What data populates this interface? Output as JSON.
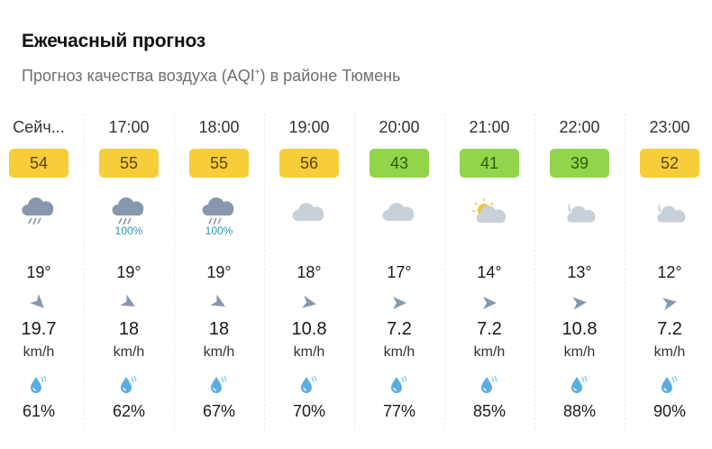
{
  "header": {
    "title": "Ежечасный прогноз",
    "subtitle_pre": "Прогноз качества воздуха (AQI",
    "subtitle_sup": "+",
    "subtitle_post": ") в районе Тюмень"
  },
  "units": {
    "wind": "km/h"
  },
  "colors": {
    "aqi_moderate": "#f8cd3a",
    "aqi_good": "#92d44a",
    "precip_text": "#2c95b5",
    "icon_gray": "#8797ad",
    "cloud_light": "#c8d0d8"
  },
  "hours": [
    {
      "time": "Сейч...",
      "aqi": "54",
      "aqi_level": "moderate",
      "icon": "rain-cloud-icon",
      "precip": "",
      "temp": "19°",
      "wind_dir_deg": 135,
      "wind_speed": "19.7",
      "humidity": "61%"
    },
    {
      "time": "17:00",
      "aqi": "55",
      "aqi_level": "moderate",
      "icon": "rain-cloud-icon",
      "precip": "100%",
      "temp": "19°",
      "wind_dir_deg": 120,
      "wind_speed": "18",
      "humidity": "62%"
    },
    {
      "time": "18:00",
      "aqi": "55",
      "aqi_level": "moderate",
      "icon": "rain-cloud-icon",
      "precip": "100%",
      "temp": "19°",
      "wind_dir_deg": 120,
      "wind_speed": "18",
      "humidity": "67%"
    },
    {
      "time": "19:00",
      "aqi": "56",
      "aqi_level": "moderate",
      "icon": "cloud-icon",
      "precip": "",
      "temp": "18°",
      "wind_dir_deg": 100,
      "wind_speed": "10.8",
      "humidity": "70%"
    },
    {
      "time": "20:00",
      "aqi": "43",
      "aqi_level": "good",
      "icon": "cloud-icon",
      "precip": "",
      "temp": "17°",
      "wind_dir_deg": 90,
      "wind_speed": "7.2",
      "humidity": "77%"
    },
    {
      "time": "21:00",
      "aqi": "41",
      "aqi_level": "good",
      "icon": "sun-cloud-icon",
      "precip": "",
      "temp": "14°",
      "wind_dir_deg": 90,
      "wind_speed": "7.2",
      "humidity": "85%"
    },
    {
      "time": "22:00",
      "aqi": "39",
      "aqi_level": "good",
      "icon": "moon-cloud-icon",
      "precip": "",
      "temp": "13°",
      "wind_dir_deg": 85,
      "wind_speed": "10.8",
      "humidity": "88%"
    },
    {
      "time": "23:00",
      "aqi": "52",
      "aqi_level": "moderate",
      "icon": "moon-cloud-icon",
      "precip": "",
      "temp": "12°",
      "wind_dir_deg": 80,
      "wind_speed": "7.2",
      "humidity": "90%"
    }
  ]
}
